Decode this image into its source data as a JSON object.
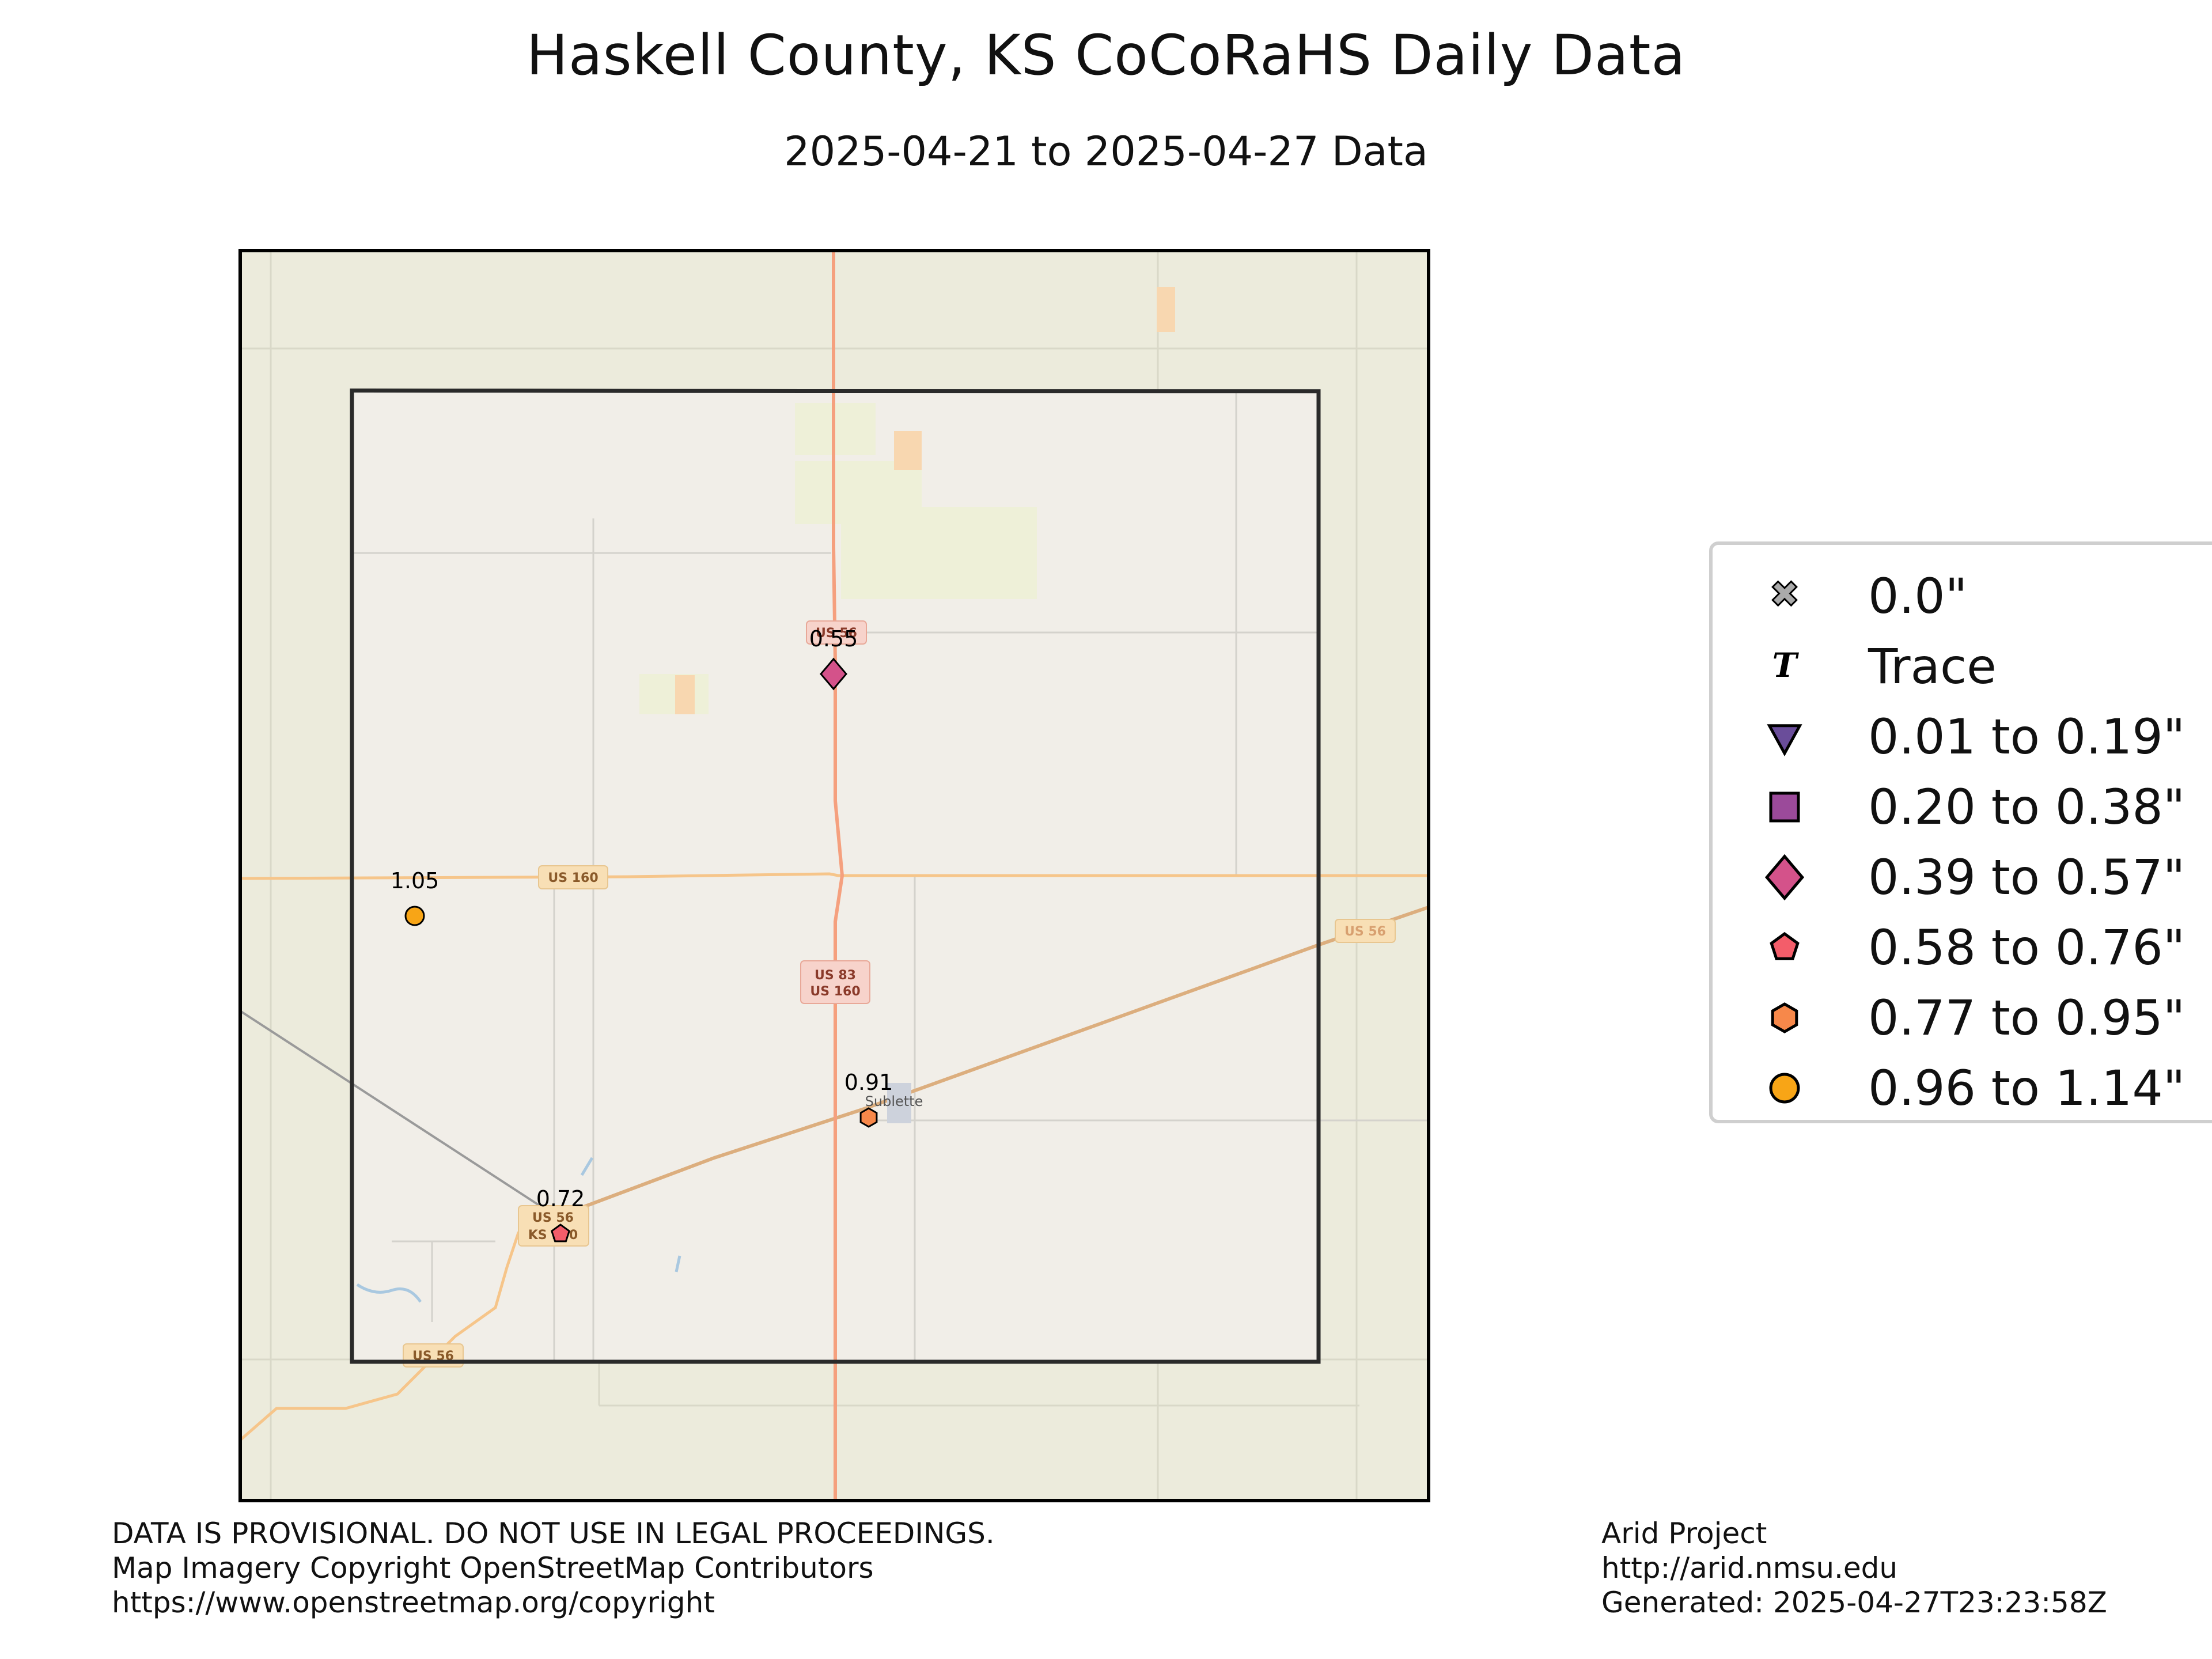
{
  "title": "Haskell County, KS CoCoRaHS Daily Data",
  "subtitle": "2025-04-21 to 2025-04-27 Data",
  "map": {
    "place_labels": [
      "Sublette"
    ],
    "road_labels": [
      "US 160",
      "US 83",
      "US 160",
      "US 56",
      "US 56",
      "KS 190",
      "US 56",
      "US 56"
    ],
    "colors": {
      "land": "#ecebdc",
      "county_fill": "#f1eee8",
      "county_border": "#333333",
      "highway": "#f5a07e",
      "road_minor": "#f6c58a",
      "frame": "#000000"
    }
  },
  "stations": [
    {
      "id": "st-1",
      "value": "0.55",
      "category": "0.39 to 0.57\"",
      "marker": "diamond",
      "color": "#d4528a"
    },
    {
      "id": "st-2",
      "value": "1.05",
      "category": "0.96 to 1.14\"",
      "marker": "circle",
      "color": "#f8a516"
    },
    {
      "id": "st-3",
      "value": "0.91",
      "category": "0.77 to 0.95\"",
      "marker": "hexagon",
      "color": "#f7884a"
    },
    {
      "id": "st-4",
      "value": "0.72",
      "category": "0.58 to 0.76\"",
      "marker": "pentagon",
      "color": "#f35d6a"
    }
  ],
  "legend": {
    "items": [
      {
        "label": "0.0\"",
        "marker": "x",
        "color": "#aaaaaa"
      },
      {
        "label": "Trace",
        "marker": "T",
        "color": "#000000"
      },
      {
        "label": "0.01 to 0.19\"",
        "marker": "triangle-down",
        "color": "#6a4d9a"
      },
      {
        "label": "0.20 to 0.38\"",
        "marker": "square",
        "color": "#9b4a9a"
      },
      {
        "label": "0.39 to 0.57\"",
        "marker": "diamond",
        "color": "#d4528a"
      },
      {
        "label": "0.58 to 0.76\"",
        "marker": "pentagon",
        "color": "#f35d6a"
      },
      {
        "label": "0.77 to 0.95\"",
        "marker": "hexagon",
        "color": "#f7884a"
      },
      {
        "label": "0.96 to 1.14\"",
        "marker": "circle",
        "color": "#f8a516"
      }
    ]
  },
  "footer": {
    "left": [
      "DATA IS PROVISIONAL. DO NOT USE IN LEGAL PROCEEDINGS.",
      "Map Imagery Copyright OpenStreetMap Contributors",
      "https://www.openstreetmap.org/copyright"
    ],
    "right": [
      "Arid Project",
      "http://arid.nmsu.edu",
      "Generated: 2025-04-27T23:23:58Z"
    ]
  }
}
